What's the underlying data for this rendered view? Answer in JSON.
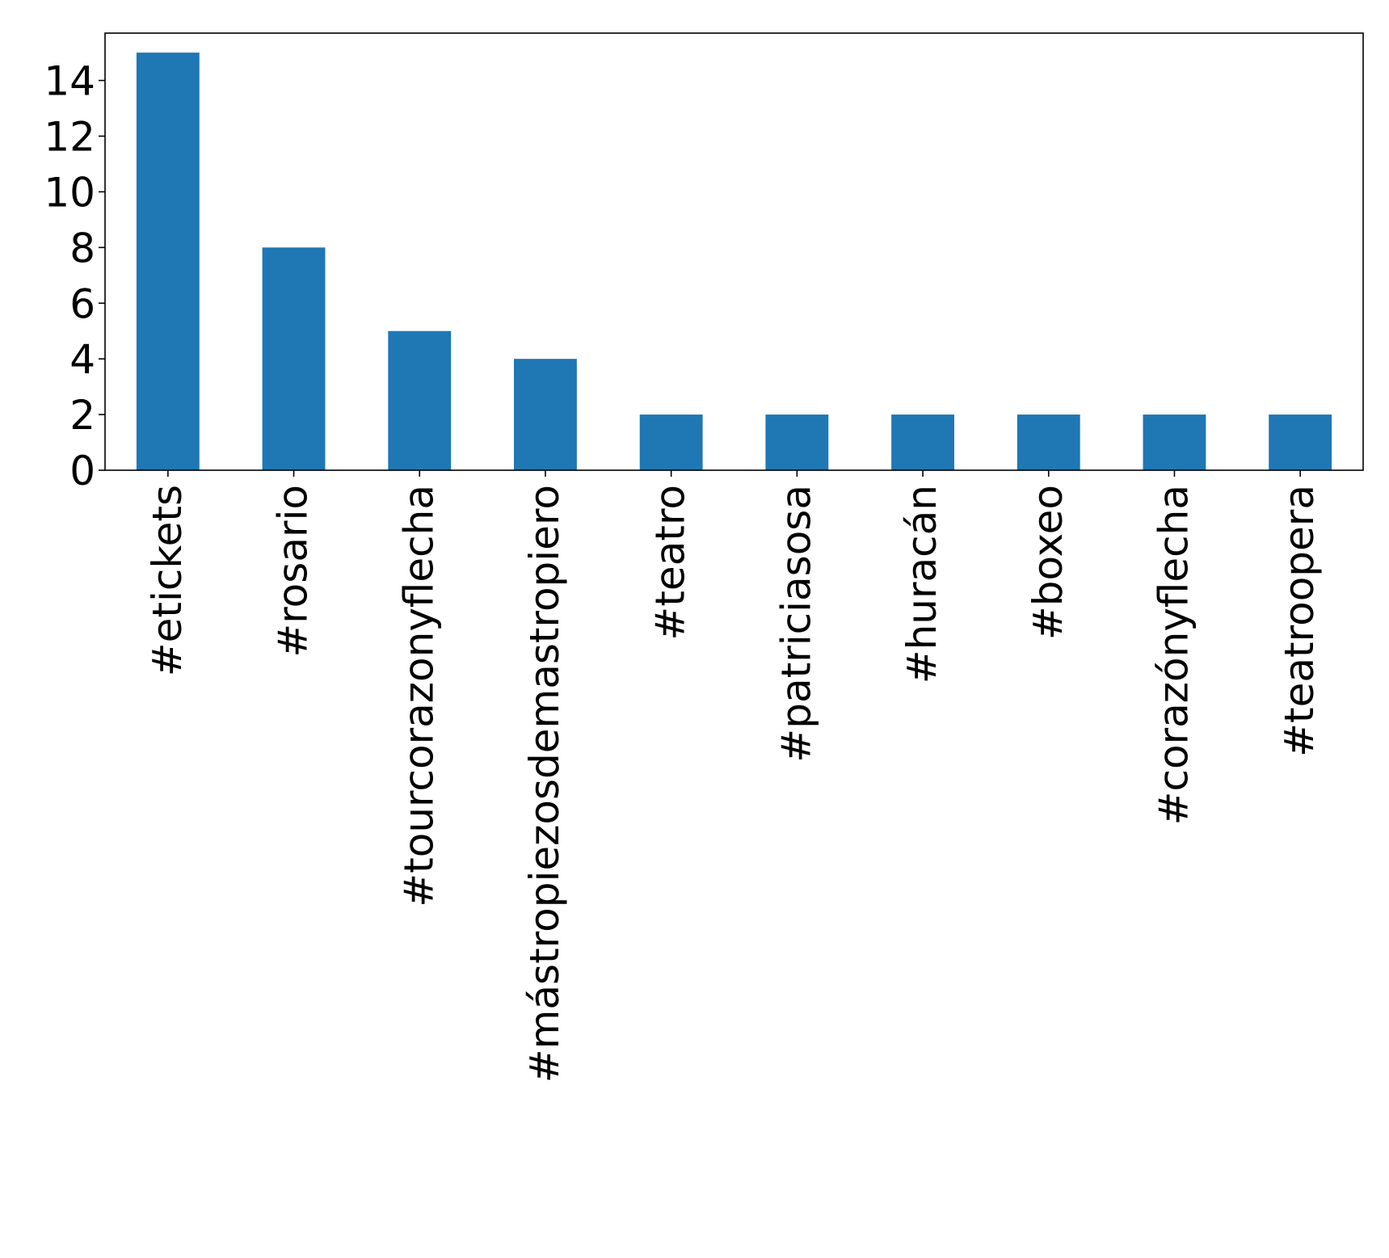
{
  "chart_data": {
    "type": "bar",
    "title": "",
    "xlabel": "",
    "ylabel": "",
    "categories": [
      "#etickets",
      "#rosario",
      "#tourcorazonyflecha",
      "#mástropiezosdemastropiero",
      "#teatro",
      "#patriciasosa",
      "#huracán",
      "#boxeo",
      "#corazónyflecha",
      "#teatroopera"
    ],
    "values": [
      15,
      8,
      5,
      4,
      2,
      2,
      2,
      2,
      2,
      2
    ],
    "ylim": [
      0,
      15.7
    ],
    "yticks": [
      0,
      2,
      4,
      6,
      8,
      10,
      12,
      14
    ],
    "ytick_labels": [
      "0",
      "2",
      "4",
      "6",
      "8",
      "10",
      "12",
      "14"
    ],
    "colors": {
      "bar": "#1f77b4",
      "axis": "#000000",
      "background": "#ffffff"
    },
    "grid": false,
    "legend": "none"
  }
}
